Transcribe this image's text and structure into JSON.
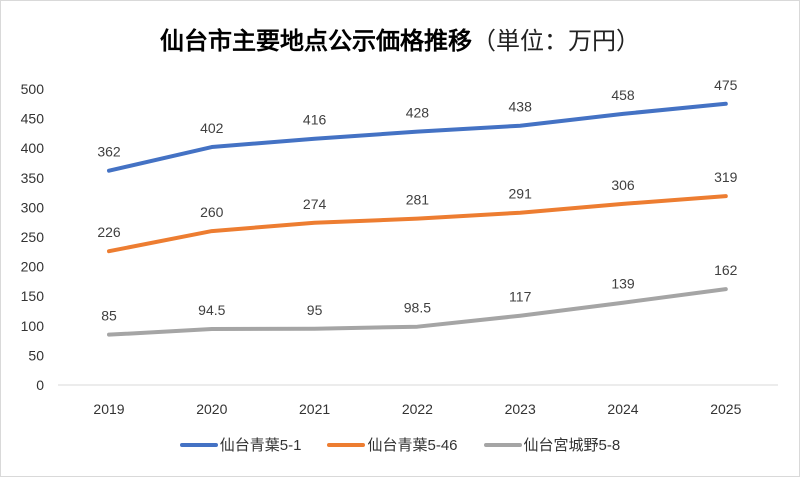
{
  "chart_data": {
    "type": "line",
    "title": "仙台市主要地点公示価格推移",
    "title_unit": "（単位：万円）",
    "categories": [
      "2019",
      "2020",
      "2021",
      "2022",
      "2023",
      "2024",
      "2025"
    ],
    "ylim": [
      0,
      500
    ],
    "yticks": [
      "0",
      "50",
      "100",
      "150",
      "200",
      "250",
      "300",
      "350",
      "400",
      "450",
      "500"
    ],
    "grid": false,
    "legend": "bottom",
    "series": [
      {
        "name": "仙台青葉5-1",
        "color": "#4472c4",
        "values": [
          362,
          402,
          416,
          428,
          438,
          458,
          475
        ],
        "labels": [
          "362",
          "402",
          "416",
          "428",
          "438",
          "458",
          "475"
        ]
      },
      {
        "name": "仙台青葉5-46",
        "color": "#ed7d31",
        "values": [
          226,
          260,
          274,
          281,
          291,
          306,
          319
        ],
        "labels": [
          "226",
          "260",
          "274",
          "281",
          "291",
          "306",
          "319"
        ]
      },
      {
        "name": "仙台宮城野5-8",
        "color": "#a5a5a5",
        "values": [
          85,
          94.5,
          95,
          98.5,
          117,
          139,
          162
        ],
        "labels": [
          "85",
          "94.5",
          "95",
          "98.5",
          "117",
          "139",
          "162"
        ]
      }
    ]
  }
}
